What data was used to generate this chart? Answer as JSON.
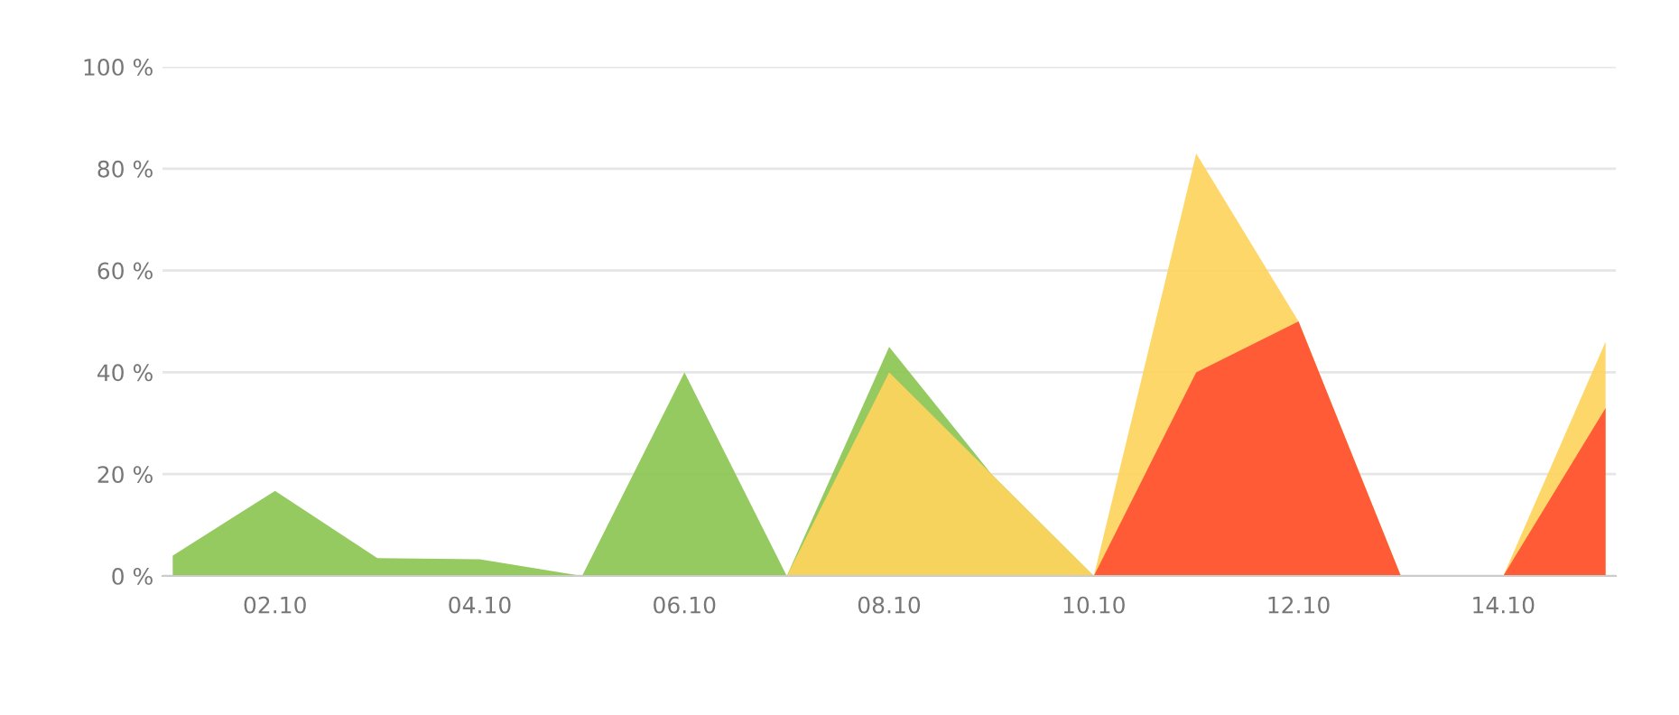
{
  "chart_data": {
    "type": "area",
    "categories": [
      null,
      "02.10",
      null,
      "04.10",
      null,
      "06.10",
      null,
      "08.10",
      null,
      "10.10",
      null,
      "12.10",
      null,
      "14.10",
      null
    ],
    "series": [
      {
        "color": "#8cc653",
        "values": [
          4,
          16.7,
          3.5,
          3.3,
          0,
          40,
          0,
          45,
          20,
          0,
          null,
          null,
          null,
          null,
          null
        ]
      },
      {
        "color": "#fdd45c",
        "values": [
          null,
          null,
          null,
          null,
          null,
          null,
          0,
          40,
          20,
          0,
          83,
          50,
          0,
          0,
          46
        ]
      },
      {
        "color": "#ff5033",
        "values": [
          null,
          null,
          null,
          null,
          null,
          null,
          null,
          null,
          null,
          0,
          40,
          50,
          0,
          0,
          33
        ]
      }
    ],
    "ylim": [
      0,
      100
    ],
    "yticks": [
      {
        "value": 0,
        "label": "0 %"
      },
      {
        "value": 20,
        "label": "20 %"
      },
      {
        "value": 40,
        "label": "40 %"
      },
      {
        "value": 60,
        "label": "60 %"
      },
      {
        "value": 80,
        "label": "80 %"
      },
      {
        "value": 100,
        "label": "100 %"
      }
    ],
    "grid": "y",
    "legend": false
  }
}
